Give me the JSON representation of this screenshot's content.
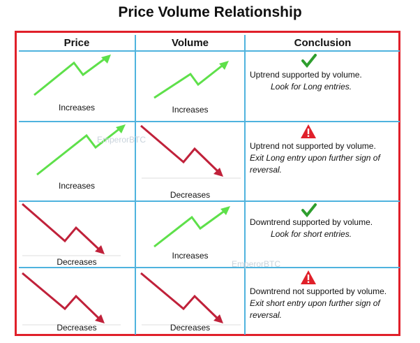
{
  "title": "Price Volume Relationship",
  "headers": {
    "price": "Price",
    "volume": "Volume",
    "conclusion": "Conclusion"
  },
  "rows": [
    {
      "price": "Increases",
      "volume": "Increases",
      "icon": "check-icon",
      "conclusion": "Uptrend supported by volume.",
      "action": "Look for Long entries."
    },
    {
      "price": "Increases",
      "volume": "Decreases",
      "icon": "warning-icon",
      "conclusion": "Uptrend not supported by volume.",
      "action": "Exit Long entry upon further sign of reversal."
    },
    {
      "price": "Decreases",
      "volume": "Increases",
      "icon": "check-icon",
      "conclusion": "Downtrend supported by volume.",
      "action": "Look for short entries."
    },
    {
      "price": "Decreases",
      "volume": "Decreases",
      "icon": "warning-icon",
      "conclusion": "Downtrend not supported by volume.",
      "action": "Exit short entry upon further sign of reversal."
    }
  ],
  "watermark": "EmperorBTC",
  "colors": {
    "up": "#5ee04a",
    "down": "#c0213a",
    "frame": "#e0202a",
    "grid": "#4fb3de",
    "check": "#2e9e2e",
    "warn": "#e0202a"
  }
}
